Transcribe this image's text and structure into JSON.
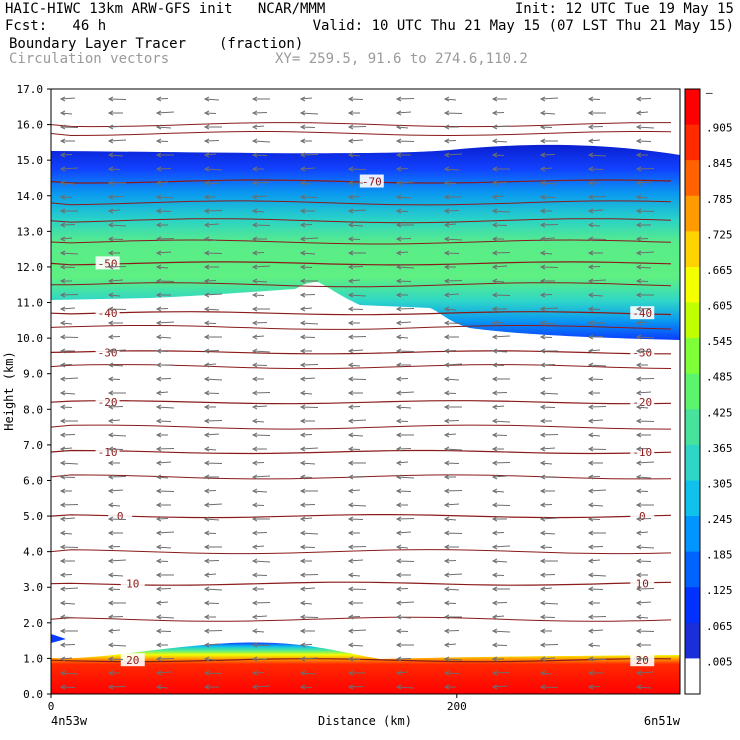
{
  "header": {
    "line1_left": "HAIC-HIWC 13km ARW-GFS init   NCAR/MMM",
    "line1_right": "Init: 12 UTC Tue 19 May 15",
    "line2_left": "Fcst:   46 h",
    "line2_right": "Valid: 10 UTC Thu 21 May 15 (07 LST Thu 21 May 15)",
    "field_name": "Boundary Layer Tracer",
    "field_units": "(fraction)",
    "vector_label": "Circulation vectors",
    "xy_label": "XY= 259.5, 91.6 to 274.6,110.2"
  },
  "chart_data": {
    "type": "cross-section",
    "xlabel": "Distance (km)",
    "ylabel": "Height (km)",
    "xlim": [
      0,
      310
    ],
    "ylim": [
      0.0,
      17.0
    ],
    "x_ticks": [
      0,
      200
    ],
    "y_ticks": [
      "0.0",
      "1.0",
      "2.0",
      "3.0",
      "4.0",
      "5.0",
      "6.0",
      "7.0",
      "8.0",
      "9.0",
      "10.0",
      "11.0",
      "12.0",
      "13.0",
      "14.0",
      "15.0",
      "16.0",
      "17.0"
    ],
    "left_end_label": "4n53w",
    "right_end_label": "6n51w",
    "colorbar_levels": [
      "–",
      ".905",
      ".845",
      ".785",
      ".725",
      ".665",
      ".605",
      ".545",
      ".485",
      ".425",
      ".365",
      ".305",
      ".245",
      ".185",
      ".125",
      ".065",
      ".005"
    ],
    "colorbar_colors": [
      "#ff0000",
      "#ff2a00",
      "#ff6200",
      "#ff9b00",
      "#ffd200",
      "#f4ff00",
      "#bfff00",
      "#7fff38",
      "#5cf46d",
      "#47e39c",
      "#2fd6c8",
      "#10c2eb",
      "#0095ff",
      "#0062ff",
      "#0031ff",
      "#1a2fd8",
      "#ffffff"
    ],
    "temperature_contours": [
      {
        "label": "-70",
        "height": 14.4,
        "label_x": [
          0.51
        ]
      },
      {
        "label": "-50",
        "height": 12.1,
        "label_x": [
          0.09
        ]
      },
      {
        "label": "-40",
        "height": 10.7,
        "label_x": [
          0.09,
          0.94
        ]
      },
      {
        "label": "-30",
        "height": 9.6,
        "label_x": [
          0.09,
          0.94
        ]
      },
      {
        "label": "-20",
        "height": 8.2,
        "label_x": [
          0.09,
          0.94
        ]
      },
      {
        "label": "-10",
        "height": 6.8,
        "label_x": [
          0.09,
          0.94
        ]
      },
      {
        "label": "0",
        "height": 5.0,
        "label_x": [
          0.11,
          0.94
        ]
      },
      {
        "label": "10",
        "height": 3.1,
        "label_x": [
          0.13,
          0.94
        ]
      },
      {
        "label": "20",
        "height": 0.95,
        "label_x": [
          0.13,
          0.94
        ]
      }
    ]
  }
}
